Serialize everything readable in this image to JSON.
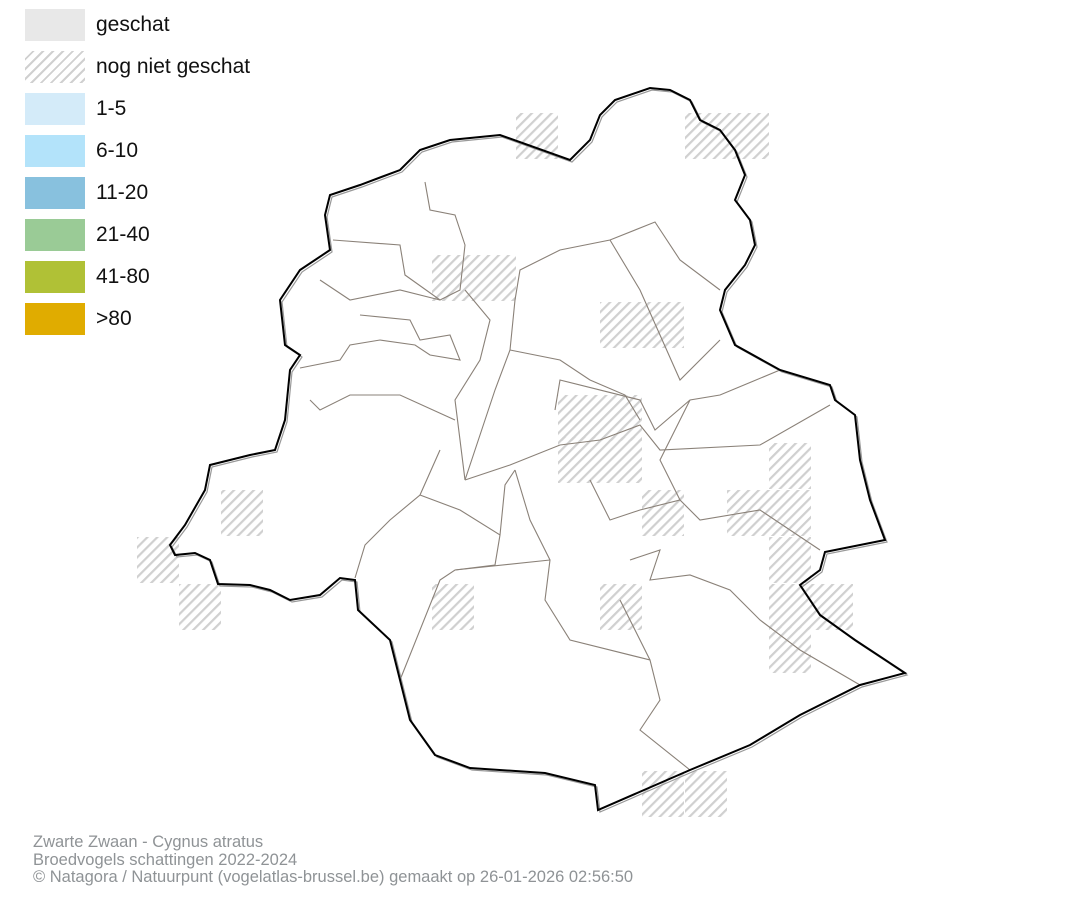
{
  "legend": {
    "items": [
      {
        "label": "geschat",
        "color": "#e8e8e8",
        "pattern": "solid"
      },
      {
        "label": "nog niet geschat",
        "color": "#d0d0d0",
        "pattern": "hatched"
      },
      {
        "label": "1-5",
        "color": "#d4ebf9",
        "pattern": "solid"
      },
      {
        "label": "6-10",
        "color": "#b3e3fa",
        "pattern": "solid"
      },
      {
        "label": "11-20",
        "color": "#88c1de",
        "pattern": "solid"
      },
      {
        "label": "21-40",
        "color": "#9acb96",
        "pattern": "solid"
      },
      {
        "label": "41-80",
        "color": "#b0c136",
        "pattern": "solid"
      },
      {
        "label": ">80",
        "color": "#e0ac00",
        "pattern": "solid"
      }
    ]
  },
  "footer": {
    "species": "Zwarte Zwaan - Cygnus atratus",
    "subtitle": "Broedvogels schattingen 2022-2024",
    "credit": "© Natagora / Natuurpunt (vogelatlas-brussel.be) gemaakt op 26-01-2026 02:56:50"
  }
}
